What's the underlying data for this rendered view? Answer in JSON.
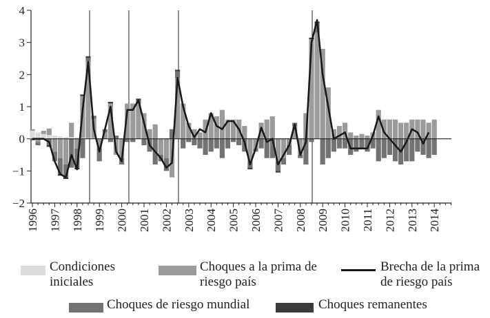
{
  "chart_data": {
    "type": "bar",
    "stacked": true,
    "categories": [
      "1996",
      null,
      null,
      null,
      "1997",
      null,
      null,
      null,
      "1998",
      null,
      null,
      null,
      "1999",
      null,
      null,
      null,
      "2000",
      null,
      null,
      null,
      "2001",
      null,
      null,
      null,
      "2002",
      null,
      null,
      null,
      "2003",
      null,
      null,
      null,
      "2004",
      null,
      null,
      null,
      "2005",
      null,
      null,
      null,
      "2006",
      null,
      null,
      null,
      "2007",
      null,
      null,
      null,
      "2008",
      null,
      null,
      null,
      "2009",
      null,
      null,
      null,
      "2010",
      null,
      null,
      null,
      "2011",
      null,
      null,
      null,
      "2012",
      null,
      null,
      null,
      "2013",
      null,
      null,
      null,
      "2014",
      null,
      null,
      null
    ],
    "series": [
      {
        "name": "Condiciones iniciales",
        "color": "#dcdcdc",
        "values": [
          0.25,
          0.2,
          0.15,
          0.12,
          0.1,
          0.08,
          0.06,
          0.05,
          0.04,
          0.03,
          0.02,
          0.02,
          0,
          0,
          0,
          0,
          0,
          0,
          0,
          0,
          0,
          0,
          0,
          0,
          0,
          0,
          0,
          0,
          0,
          0,
          0,
          0,
          0,
          0,
          0,
          0,
          0,
          0,
          0,
          0,
          0,
          0,
          0,
          0,
          0,
          0,
          0,
          0,
          0,
          0,
          0,
          0,
          0,
          0,
          0,
          0,
          0,
          0,
          0,
          0,
          0,
          0,
          0,
          0,
          0,
          0,
          0,
          0,
          0,
          0,
          0,
          0,
          0,
          null,
          null,
          null
        ]
      },
      {
        "name": "Choques a la prima de riesgo país",
        "color": "#9b9b9b",
        "values": [
          0.05,
          -0.1,
          0.1,
          0.2,
          -0.4,
          -0.6,
          -0.8,
          0.45,
          -0.3,
          1.3,
          2.4,
          0.6,
          -0.3,
          0.2,
          1.1,
          -0.5,
          -0.6,
          1.1,
          1.1,
          1.1,
          0.8,
          0.3,
          0.45,
          -0.5,
          -0.6,
          -1.2,
          1.9,
          1.1,
          0.5,
          0.3,
          0.2,
          0.6,
          0.8,
          0.7,
          0.9,
          0.6,
          0.6,
          0.6,
          0.4,
          -0.7,
          -0.3,
          0.5,
          0.6,
          0.7,
          -0.7,
          -0.6,
          -0.2,
          0.4,
          -0.5,
          0.8,
          3.1,
          3.3,
          2.8,
          1.6,
          0.3,
          0.4,
          0.5,
          0.2,
          0.1,
          0.15,
          0.1,
          0.2,
          0.9,
          0.6,
          0.6,
          0.6,
          0.5,
          0.5,
          0.6,
          0.6,
          0.6,
          0.5,
          0.6,
          null,
          null,
          null
        ]
      },
      {
        "name": "Choques de riesgo mundial",
        "color": "#737373",
        "values": [
          -0.05,
          -0.1,
          0,
          -0.2,
          -0.3,
          -0.5,
          -0.4,
          -0.9,
          -0.6,
          -0.6,
          0.1,
          0.1,
          -0.4,
          0.1,
          -0.1,
          0.1,
          -0.2,
          -0.1,
          -0.1,
          0.1,
          -0.2,
          -0.4,
          -0.8,
          -0.2,
          -0.4,
          0.3,
          0.2,
          -0.3,
          -0.1,
          -0.2,
          -0.3,
          -0.5,
          -0.4,
          -0.3,
          -0.6,
          -0.3,
          -0.1,
          -0.2,
          -0.4,
          -0.2,
          -0.1,
          -0.3,
          -0.6,
          -0.6,
          -0.3,
          -0.2,
          -0.3,
          0.1,
          -0.1,
          -0.8,
          -0.1,
          0.3,
          -0.8,
          -0.6,
          -0.4,
          -0.3,
          -0.3,
          -0.5,
          -0.4,
          -0.3,
          -0.4,
          -0.3,
          -0.7,
          -0.6,
          -0.5,
          -0.7,
          -0.8,
          -0.7,
          -0.7,
          -0.4,
          -0.5,
          -0.6,
          -0.5,
          null,
          null,
          null
        ]
      },
      {
        "name": "Choques remanentes",
        "color": "#3c3c3c",
        "values": [
          0,
          0,
          0,
          -0.05,
          0,
          -0.05,
          -0.05,
          0,
          -0.05,
          0.05,
          0.05,
          0,
          0,
          0,
          0.05,
          0,
          0,
          0,
          0,
          0.05,
          0,
          0,
          0,
          0,
          0,
          0,
          0.05,
          0,
          0,
          0,
          0,
          0,
          0,
          0,
          0,
          0,
          0,
          0,
          0,
          -0.05,
          0,
          0,
          0,
          0,
          -0.05,
          0,
          0,
          0,
          0,
          0,
          0.05,
          0.05,
          0,
          0,
          0,
          0,
          0,
          0,
          0,
          0,
          0,
          0,
          0,
          0,
          0,
          0,
          0,
          0,
          0,
          0,
          0,
          0,
          0,
          null,
          null,
          null
        ]
      },
      {
        "name": "Brecha de la prima de riesgo país",
        "type": "line",
        "color": "#1a1a1a",
        "values": [
          0,
          0,
          0,
          -0.1,
          -0.7,
          -1.1,
          -1.2,
          -0.5,
          -0.95,
          0.9,
          2.4,
          0.3,
          -0.4,
          0.3,
          1.0,
          -0.4,
          -0.7,
          0.9,
          0.9,
          1.2,
          0.5,
          -0.2,
          -0.4,
          -0.6,
          -0.9,
          -0.75,
          1.9,
          1.0,
          0.4,
          0.05,
          0.3,
          0.2,
          0.8,
          0.4,
          0.3,
          0.55,
          0.55,
          0.3,
          -0.1,
          -0.8,
          -0.3,
          0.35,
          -0.1,
          0,
          -0.8,
          -0.5,
          -0.2,
          0.45,
          -0.5,
          -0.1,
          3.0,
          3.7,
          2.0,
          1.0,
          0,
          0.1,
          0.2,
          -0.3,
          -0.3,
          -0.3,
          -0.3,
          0.1,
          0.7,
          0.2,
          0,
          -0.2,
          -0.4,
          -0.1,
          0.3,
          0.2,
          -0.15,
          0.2,
          null,
          null,
          null,
          null
        ]
      }
    ],
    "ylim": [
      -2,
      4
    ],
    "yticks": [
      {
        "value": -2,
        "label": "−2"
      },
      {
        "value": -1,
        "label": "−1"
      },
      0,
      1,
      2,
      3,
      4
    ]
  }
}
